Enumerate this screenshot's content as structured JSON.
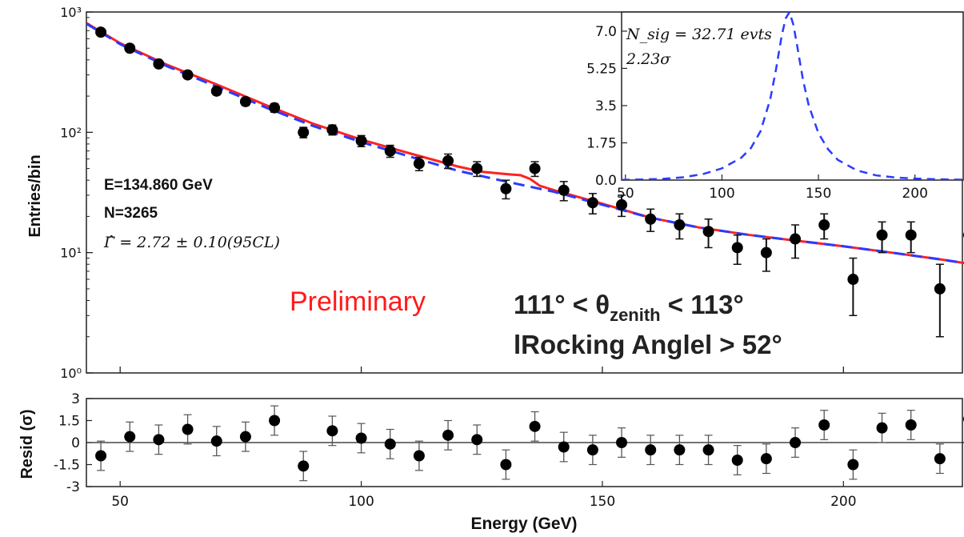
{
  "chart_data": [
    {
      "id": "main",
      "type": "scatter",
      "ylabel": "Entries/bin",
      "yscale": "log",
      "ylim": [
        1,
        1000
      ],
      "xlim": [
        43,
        225
      ],
      "yticks": [
        {
          "value": 1,
          "label": "10⁰"
        },
        {
          "value": 10,
          "label": "10¹"
        },
        {
          "value": 100,
          "label": "10²"
        },
        {
          "value": 1000,
          "label": "10³"
        }
      ],
      "x": [
        46,
        52,
        58,
        64,
        70,
        76,
        82,
        88,
        94,
        100,
        106,
        112,
        118,
        124,
        130,
        136,
        142,
        148,
        154,
        160,
        166,
        172,
        178,
        184,
        190,
        196,
        202,
        208,
        214,
        220,
        226
      ],
      "y": [
        680,
        500,
        370,
        300,
        220,
        180,
        160,
        100,
        105,
        85,
        70,
        55,
        58,
        50,
        34,
        50,
        33,
        26,
        25,
        19,
        17,
        15,
        11,
        10,
        13,
        17,
        6,
        14,
        14,
        5,
        14
      ],
      "yerr_low": [
        27,
        22,
        19,
        17,
        15,
        13,
        13,
        10,
        10,
        9,
        8,
        7,
        8,
        7,
        6,
        7,
        6,
        5,
        5,
        4,
        4,
        4,
        3,
        3,
        4,
        4,
        3,
        4,
        4,
        3,
        4
      ],
      "yerr_high": [
        27,
        22,
        19,
        17,
        15,
        13,
        13,
        10,
        10,
        9,
        8,
        7,
        8,
        7,
        6,
        7,
        6,
        5,
        5,
        4,
        4,
        4,
        3,
        3,
        4,
        4,
        3,
        4,
        4,
        3,
        4
      ],
      "series": [
        {
          "name": "signal+background fit",
          "color": "#ff2222",
          "x": [
            43,
            50,
            60,
            70,
            80,
            90,
            100,
            110,
            120,
            125,
            130,
            133,
            135,
            137,
            140,
            150,
            160,
            170,
            180,
            190,
            200,
            210,
            220,
            225
          ],
          "y": [
            810,
            550,
            360,
            250,
            170,
            118,
            87,
            67,
            52,
            47,
            45,
            44,
            41,
            36,
            33,
            25.5,
            19.5,
            16.2,
            14.1,
            12.6,
            11.3,
            10.0,
            8.8,
            8.2
          ]
        },
        {
          "name": "background fit",
          "color": "#2b3bff",
          "x": [
            43,
            50,
            60,
            70,
            80,
            90,
            100,
            110,
            120,
            130,
            140,
            150,
            160,
            170,
            180,
            190,
            200,
            210,
            220,
            225
          ],
          "y": [
            800,
            540,
            350,
            240,
            162,
            113,
            83,
            63,
            48,
            39,
            32,
            25,
            19.5,
            16.2,
            14.1,
            12.6,
            11.3,
            10.0,
            8.8,
            8.2
          ]
        }
      ],
      "annotations": {
        "energy": "E=134.860 GeV",
        "count": "N=3265",
        "gamma": "Γ̂ = 2.72 ± 0.10(95CL)",
        "preliminary": "Preliminary",
        "cut1_pre": "111° < θ",
        "cut1_sub": "zenith",
        "cut1_post": " < 113°",
        "cut2": "lRocking Anglel > 52°"
      },
      "colors": {
        "preliminary": "#ff1a1a",
        "signal": "#ff2222",
        "background": "#2b3bff"
      }
    },
    {
      "id": "inset",
      "type": "line",
      "xlim": [
        48,
        225
      ],
      "ylim": [
        0,
        7.9
      ],
      "xticks": [
        50,
        100,
        150,
        200
      ],
      "yticks": [
        {
          "value": 0,
          "label": "0.0"
        },
        {
          "value": 1.75,
          "label": "1.75"
        },
        {
          "value": 3.5,
          "label": "3.5"
        },
        {
          "value": 5.25,
          "label": "5.25"
        },
        {
          "value": 7.0,
          "label": "7.0"
        }
      ],
      "series": [
        {
          "name": "signal",
          "color": "#2b3bff",
          "x": [
            48,
            60,
            70,
            80,
            90,
            100,
            110,
            115,
            120,
            125,
            128,
            131,
            133,
            135,
            137,
            139,
            142,
            145,
            150,
            155,
            160,
            170,
            180,
            190,
            200,
            210,
            225
          ],
          "y": [
            0.01,
            0.03,
            0.06,
            0.13,
            0.28,
            0.55,
            1.05,
            1.5,
            2.3,
            3.8,
            5.2,
            6.8,
            7.6,
            7.9,
            7.3,
            6.3,
            4.7,
            3.5,
            2.2,
            1.45,
            0.95,
            0.45,
            0.22,
            0.12,
            0.07,
            0.04,
            0.02
          ]
        }
      ],
      "annotations": {
        "nsig": "N_sig = 32.71 evts",
        "sigma": "2.23σ"
      }
    },
    {
      "id": "residuals",
      "type": "scatter",
      "xlabel": "Energy (GeV)",
      "ylabel": "Resid (σ)",
      "xlim": [
        43,
        225
      ],
      "ylim": [
        -3,
        3
      ],
      "xticks": [
        50,
        100,
        150,
        200
      ],
      "yticks": [
        {
          "value": 3,
          "label": "3"
        },
        {
          "value": 1.5,
          "label": "1.5"
        },
        {
          "value": 0,
          "label": "0"
        },
        {
          "value": -1.5,
          "label": "-1.5"
        },
        {
          "value": -3,
          "label": "-3"
        }
      ],
      "x": [
        46,
        52,
        58,
        64,
        70,
        76,
        82,
        88,
        94,
        100,
        106,
        112,
        118,
        124,
        130,
        136,
        142,
        148,
        154,
        160,
        166,
        172,
        178,
        184,
        190,
        196,
        202,
        208,
        214,
        220,
        226
      ],
      "y": [
        -0.9,
        0.4,
        0.2,
        0.9,
        0.1,
        0.4,
        1.5,
        -1.6,
        0.8,
        0.3,
        -0.1,
        -0.9,
        0.5,
        0.2,
        -1.5,
        1.1,
        -0.3,
        -0.5,
        0.0,
        -0.5,
        -0.5,
        -0.5,
        -1.2,
        -1.1,
        0.0,
        1.2,
        -1.5,
        1.0,
        1.2,
        -1.1,
        1.6
      ],
      "yerr": [
        1,
        1,
        1,
        1,
        1,
        1,
        1,
        1,
        1,
        1,
        1,
        1,
        1,
        1,
        1,
        1,
        1,
        1,
        1,
        1,
        1,
        1,
        1,
        1,
        1,
        1,
        1,
        1,
        1,
        1,
        1
      ]
    }
  ]
}
